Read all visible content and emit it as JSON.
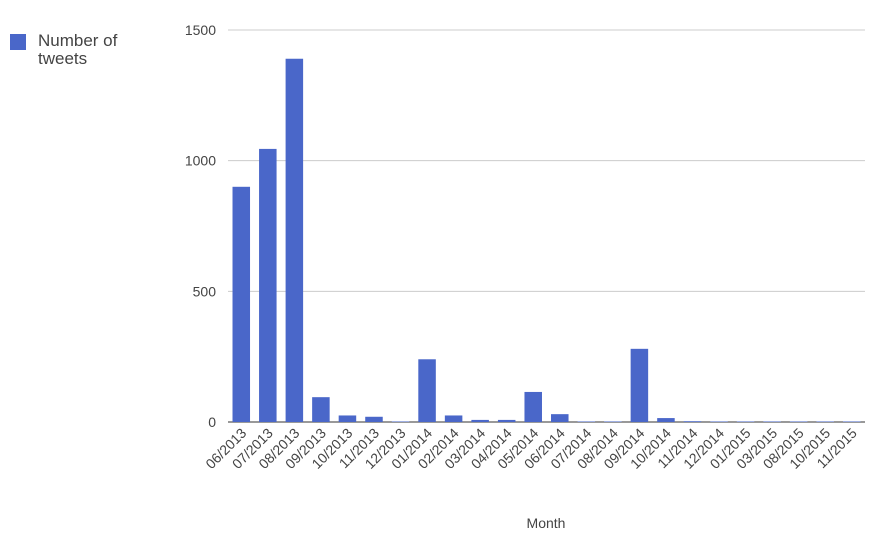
{
  "chart_data": {
    "type": "bar",
    "x_label": "Month",
    "categories": [
      "06/2013",
      "07/2013",
      "08/2013",
      "09/2013",
      "10/2013",
      "11/2013",
      "12/2013",
      "01/2014",
      "02/2014",
      "03/2014",
      "04/2014",
      "05/2014",
      "06/2014",
      "07/2014",
      "08/2014",
      "09/2014",
      "10/2014",
      "11/2014",
      "12/2014",
      "01/2015",
      "03/2015",
      "08/2015",
      "10/2015",
      "11/2015"
    ],
    "series": [
      {
        "name": "Number of tweets",
        "color": "#4a67c9",
        "values": [
          900,
          1045,
          1390,
          95,
          25,
          20,
          2,
          240,
          25,
          8,
          8,
          115,
          30,
          2,
          2,
          280,
          15,
          3,
          2,
          2,
          2,
          2,
          2,
          2
        ]
      }
    ],
    "ylim": [
      0,
      1500
    ],
    "yticks": [
      0,
      500,
      1000,
      1500
    ],
    "grid": true,
    "legend": "top-left"
  }
}
